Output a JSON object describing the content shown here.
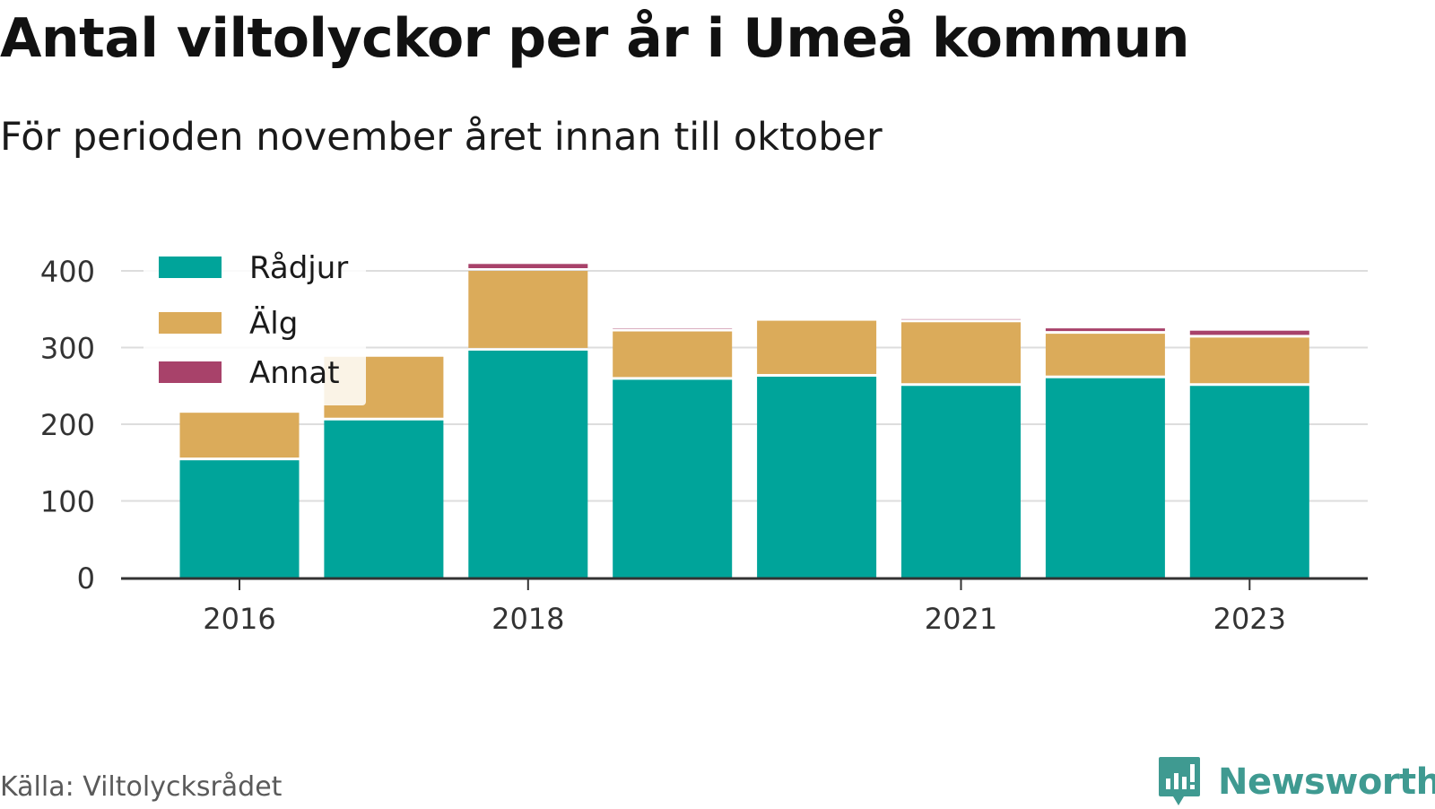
{
  "title": "Antal viltolyckor per år i Umeå kommun",
  "subtitle": "För perioden november året innan till oktober",
  "source": "Källa: Viltolycksrådet",
  "brand": {
    "name": "Newsworthy",
    "icon": "newsworthy-logo-icon",
    "color": "#3f9a91"
  },
  "chart_data": {
    "type": "bar",
    "stacked": true,
    "categories": [
      "2016",
      "2017",
      "2018",
      "2019",
      "2020",
      "2021",
      "2022",
      "2023"
    ],
    "x_tick_labels": [
      "2016",
      "",
      "2018",
      "",
      "",
      "2021",
      "",
      "2023"
    ],
    "series": [
      {
        "name": "Rådjur",
        "color": "#00a49a",
        "values": [
          153,
          205,
          296,
          258,
          262,
          250,
          260,
          250
        ]
      },
      {
        "name": "Älg",
        "color": "#dbab5a",
        "values": [
          62,
          83,
          104,
          63,
          73,
          83,
          58,
          63
        ]
      },
      {
        "name": "Annat",
        "color": "#a8426a",
        "values": [
          0,
          0,
          9,
          4,
          0,
          4,
          7,
          9
        ]
      }
    ],
    "y_ticks": [
      0,
      100,
      200,
      300,
      400
    ],
    "ylim": [
      0,
      420
    ],
    "grid": true,
    "legend_position": "top-left"
  }
}
